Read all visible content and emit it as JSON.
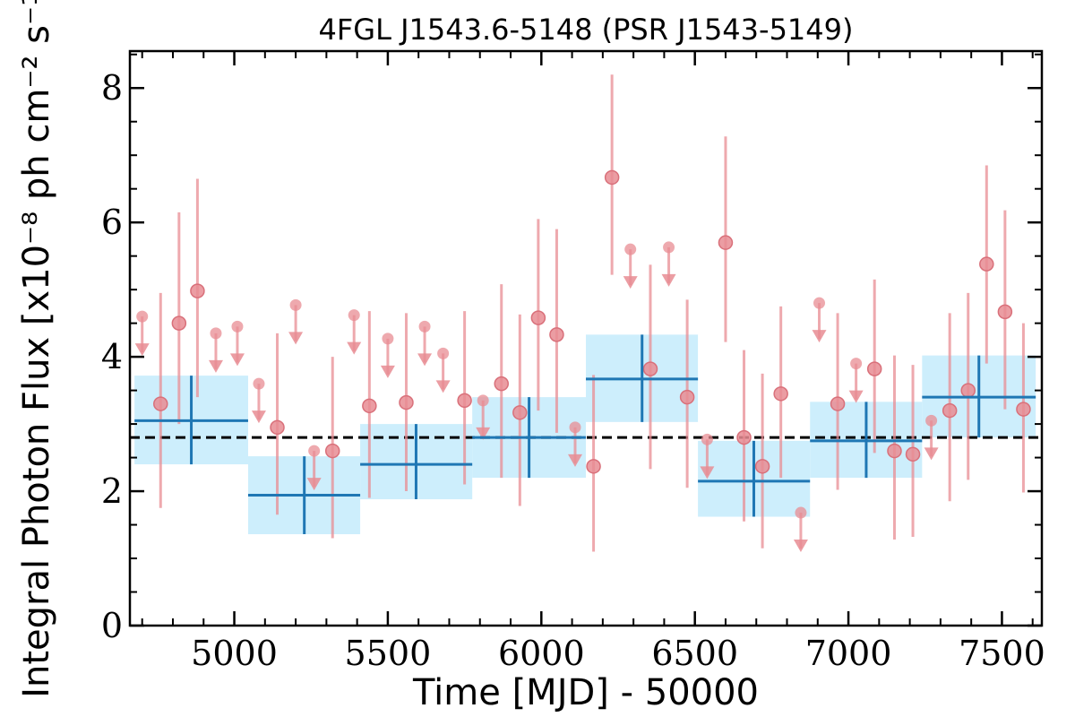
{
  "chart_data": {
    "type": "scatter",
    "title": "4FGL J1543.6-5148 (PSR J1543-5149)",
    "xlabel": "Time [MJD] - 50000",
    "ylabel": "Integral Photon Flux [x10⁻⁸ ph cm⁻² s⁻¹]",
    "xlim": [
      4660,
      7630
    ],
    "ylim": [
      0,
      8.55
    ],
    "x_ticks": [
      5000,
      5500,
      6000,
      6500,
      7000,
      7500
    ],
    "y_ticks": [
      0,
      2,
      4,
      6,
      8
    ],
    "average_flux": 2.8,
    "colors": {
      "short_bins": "#e88c93",
      "long_bins": "#1f77b4",
      "long_bins_band": "#cdeefc",
      "average_line": "#000000"
    },
    "short_bins": [
      {
        "x": 4700,
        "y": 4.6,
        "upper_limit": true
      },
      {
        "x": 4760,
        "y": 3.3,
        "lo": 1.75,
        "hi": 4.95
      },
      {
        "x": 4820,
        "y": 4.5,
        "lo": 3.0,
        "hi": 6.15
      },
      {
        "x": 4880,
        "y": 4.98,
        "lo": 3.4,
        "hi": 6.65
      },
      {
        "x": 4940,
        "y": 4.35,
        "upper_limit": true
      },
      {
        "x": 5010,
        "y": 4.45,
        "upper_limit": true
      },
      {
        "x": 5080,
        "y": 3.6,
        "upper_limit": true
      },
      {
        "x": 5140,
        "y": 2.95,
        "lo": 1.65,
        "hi": 4.35
      },
      {
        "x": 5200,
        "y": 4.77,
        "upper_limit": true
      },
      {
        "x": 5260,
        "y": 2.6,
        "upper_limit": true
      },
      {
        "x": 5320,
        "y": 2.6,
        "lo": 1.3,
        "hi": 4.0
      },
      {
        "x": 5390,
        "y": 4.62,
        "upper_limit": true
      },
      {
        "x": 5440,
        "y": 3.27,
        "lo": 1.9,
        "hi": 4.68
      },
      {
        "x": 5500,
        "y": 4.27,
        "upper_limit": true
      },
      {
        "x": 5560,
        "y": 3.32,
        "lo": 2.0,
        "hi": 4.65
      },
      {
        "x": 5620,
        "y": 4.45,
        "upper_limit": true
      },
      {
        "x": 5680,
        "y": 4.05,
        "upper_limit": true
      },
      {
        "x": 5750,
        "y": 3.35,
        "lo": 2.1,
        "hi": 4.68
      },
      {
        "x": 5810,
        "y": 3.35,
        "upper_limit": true
      },
      {
        "x": 5870,
        "y": 3.6,
        "lo": 2.2,
        "hi": 5.08
      },
      {
        "x": 5930,
        "y": 3.17,
        "lo": 1.78,
        "hi": 4.63
      },
      {
        "x": 5990,
        "y": 4.58,
        "lo": 3.2,
        "hi": 6.05
      },
      {
        "x": 6050,
        "y": 4.33,
        "lo": 2.87,
        "hi": 5.9
      },
      {
        "x": 6110,
        "y": 2.95,
        "upper_limit": true
      },
      {
        "x": 6170,
        "y": 2.37,
        "lo": 1.1,
        "hi": 3.73
      },
      {
        "x": 6230,
        "y": 6.67,
        "lo": 5.22,
        "hi": 8.2
      },
      {
        "x": 6290,
        "y": 5.6,
        "upper_limit": true
      },
      {
        "x": 6355,
        "y": 3.82,
        "lo": 2.33,
        "hi": 5.37
      },
      {
        "x": 6415,
        "y": 5.63,
        "upper_limit": true
      },
      {
        "x": 6475,
        "y": 3.4,
        "lo": 2.05,
        "hi": 4.85
      },
      {
        "x": 6540,
        "y": 2.77,
        "upper_limit": true
      },
      {
        "x": 6600,
        "y": 5.7,
        "lo": 4.22,
        "hi": 7.28
      },
      {
        "x": 6660,
        "y": 2.8,
        "lo": 1.55,
        "hi": 4.1
      },
      {
        "x": 6720,
        "y": 2.37,
        "lo": 1.15,
        "hi": 3.75
      },
      {
        "x": 6780,
        "y": 3.45,
        "lo": 2.2,
        "hi": 4.75
      },
      {
        "x": 6845,
        "y": 1.68,
        "upper_limit": true
      },
      {
        "x": 6905,
        "y": 4.8,
        "upper_limit": true
      },
      {
        "x": 6965,
        "y": 3.3,
        "lo": 2.02,
        "hi": 4.65
      },
      {
        "x": 7025,
        "y": 3.9,
        "upper_limit": true
      },
      {
        "x": 7085,
        "y": 3.82,
        "lo": 2.57,
        "hi": 5.15
      },
      {
        "x": 7150,
        "y": 2.6,
        "lo": 1.28,
        "hi": 4.02
      },
      {
        "x": 7210,
        "y": 2.55,
        "lo": 1.32,
        "hi": 3.88
      },
      {
        "x": 7270,
        "y": 3.05,
        "upper_limit": true
      },
      {
        "x": 7330,
        "y": 3.2,
        "lo": 1.85,
        "hi": 4.65
      },
      {
        "x": 7390,
        "y": 3.5,
        "lo": 2.17,
        "hi": 4.95
      },
      {
        "x": 7450,
        "y": 5.38,
        "lo": 3.9,
        "hi": 6.85
      },
      {
        "x": 7510,
        "y": 4.67,
        "lo": 3.22,
        "hi": 6.18
      },
      {
        "x": 7570,
        "y": 3.22,
        "lo": 1.98,
        "hi": 4.5
      }
    ],
    "long_bins": [
      {
        "x_lo": 4675,
        "x_hi": 5045,
        "x": 4860,
        "y": 3.05,
        "lo": 2.4,
        "hi": 3.72
      },
      {
        "x_lo": 5045,
        "x_hi": 5410,
        "x": 5228,
        "y": 1.94,
        "lo": 1.36,
        "hi": 2.52
      },
      {
        "x_lo": 5410,
        "x_hi": 5775,
        "x": 5592,
        "y": 2.4,
        "lo": 1.88,
        "hi": 3.0
      },
      {
        "x_lo": 5775,
        "x_hi": 6145,
        "x": 5960,
        "y": 2.8,
        "lo": 2.2,
        "hi": 3.4
      },
      {
        "x_lo": 6145,
        "x_hi": 6510,
        "x": 6328,
        "y": 3.67,
        "lo": 3.03,
        "hi": 4.33
      },
      {
        "x_lo": 6510,
        "x_hi": 6875,
        "x": 6692,
        "y": 2.15,
        "lo": 1.62,
        "hi": 2.75
      },
      {
        "x_lo": 6875,
        "x_hi": 7240,
        "x": 7058,
        "y": 2.75,
        "lo": 2.2,
        "hi": 3.33
      },
      {
        "x_lo": 7240,
        "x_hi": 7610,
        "x": 7425,
        "y": 3.4,
        "lo": 2.8,
        "hi": 4.02
      }
    ]
  }
}
